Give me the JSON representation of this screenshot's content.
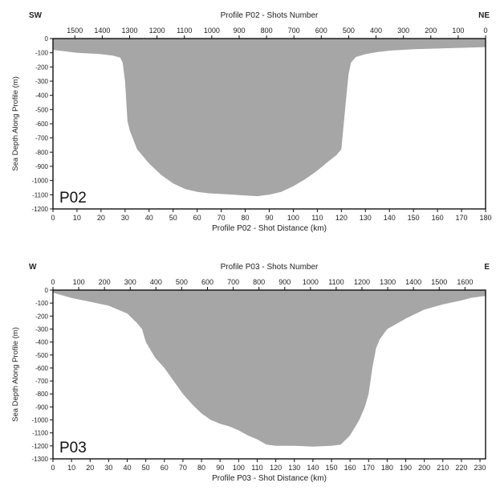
{
  "figure": {
    "shared_ylabel": "Sea Depth Along Profile (m)"
  },
  "chart_data": [
    {
      "type": "area",
      "panel_label": "P02",
      "top_title": "Profile P02 - Shots Number",
      "left_direction": "SW",
      "right_direction": "NE",
      "xlabel": "Profile P02 -  Shot Distance (km)",
      "ylabel": "Sea Depth Along Profile (m)",
      "xlim": [
        0,
        180
      ],
      "ylim": [
        -1200,
        0
      ],
      "x_ticks": [
        0,
        10,
        20,
        30,
        40,
        50,
        60,
        70,
        80,
        90,
        100,
        110,
        120,
        130,
        140,
        150,
        160,
        170,
        180
      ],
      "y_ticks": [
        0,
        -100,
        -200,
        -300,
        -400,
        -500,
        -600,
        -700,
        -800,
        -900,
        -1000,
        -1100,
        -1200
      ],
      "top_ticks": [
        1500,
        1400,
        1300,
        1200,
        1100,
        1000,
        900,
        800,
        700,
        600,
        500,
        400,
        300,
        200,
        100,
        0
      ],
      "top_axis_range": [
        1580,
        0
      ],
      "color": "#a6a6a6",
      "series": [
        {
          "x": [
            0,
            5,
            10,
            15,
            20,
            25,
            28,
            29,
            30,
            31,
            32,
            35,
            40,
            45,
            50,
            55,
            60,
            65,
            70,
            75,
            80,
            85,
            90,
            95,
            100,
            105,
            110,
            115,
            118,
            120,
            121,
            122,
            123,
            124,
            126,
            130,
            135,
            140,
            150,
            160,
            170,
            180
          ],
          "y": [
            -80,
            -90,
            -100,
            -105,
            -110,
            -120,
            -135,
            -170,
            -300,
            -580,
            -650,
            -780,
            -880,
            -960,
            -1020,
            -1060,
            -1080,
            -1090,
            -1095,
            -1100,
            -1105,
            -1110,
            -1100,
            -1080,
            -1040,
            -990,
            -930,
            -860,
            -820,
            -780,
            -600,
            -420,
            -250,
            -170,
            -130,
            -110,
            -95,
            -85,
            -75,
            -70,
            -65,
            -60
          ]
        }
      ]
    },
    {
      "type": "area",
      "panel_label": "P03",
      "top_title": "Profile P03 - Shots Number",
      "left_direction": "W",
      "right_direction": "E",
      "xlabel": "Profile P03 -  Shot Distance (km)",
      "ylabel": "Sea Depth Along Profile (m)",
      "xlim": [
        0,
        233
      ],
      "ylim": [
        -1300,
        0
      ],
      "x_ticks": [
        0,
        10,
        20,
        30,
        40,
        50,
        60,
        70,
        80,
        90,
        100,
        110,
        120,
        130,
        140,
        150,
        160,
        170,
        180,
        190,
        200,
        210,
        220,
        230
      ],
      "y_ticks": [
        0,
        -100,
        -200,
        -300,
        -400,
        -500,
        -600,
        -700,
        -800,
        -900,
        -1000,
        -1100,
        -1200,
        -1300
      ],
      "top_ticks": [
        0,
        100,
        200,
        300,
        400,
        500,
        600,
        700,
        800,
        900,
        1000,
        1100,
        1200,
        1300,
        1400,
        1500,
        1600
      ],
      "top_axis_range": [
        0,
        1680
      ],
      "color": "#a6a6a6",
      "series": [
        {
          "x": [
            0,
            5,
            10,
            20,
            30,
            40,
            45,
            48,
            50,
            55,
            60,
            65,
            70,
            75,
            80,
            85,
            90,
            95,
            100,
            105,
            110,
            115,
            120,
            125,
            130,
            140,
            150,
            155,
            160,
            165,
            168,
            170,
            172,
            174,
            176,
            180,
            190,
            200,
            210,
            220,
            225,
            230,
            233
          ],
          "y": [
            -20,
            -40,
            -60,
            -90,
            -120,
            -180,
            -250,
            -300,
            -400,
            -520,
            -600,
            -700,
            -800,
            -880,
            -950,
            -1000,
            -1030,
            -1050,
            -1080,
            -1120,
            -1150,
            -1190,
            -1200,
            -1200,
            -1200,
            -1205,
            -1200,
            -1190,
            -1120,
            -1000,
            -900,
            -800,
            -600,
            -450,
            -380,
            -300,
            -220,
            -150,
            -110,
            -80,
            -60,
            -50,
            -45
          ]
        }
      ]
    }
  ]
}
